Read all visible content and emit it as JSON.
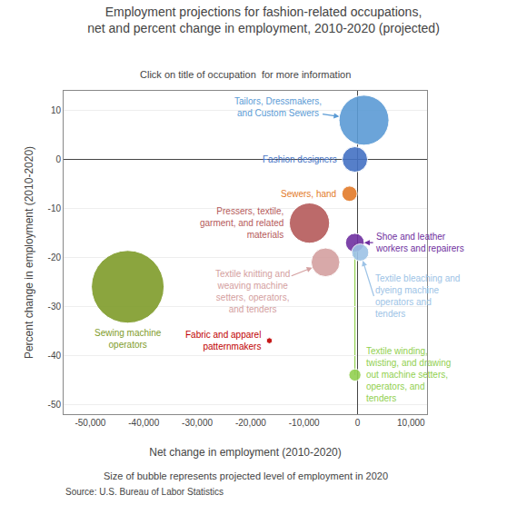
{
  "chart_data": {
    "type": "scatter",
    "title": "Employment projections for fashion-related occupations,\nnet and percent change in employment, 2010-2020 (projected)",
    "subtitle": "Click on title of occupation  for more information",
    "xlabel": "Net change in employment (2010-2020)",
    "ylabel": "Percent change in employment (2010-2020)",
    "size_note": "Size of bubble represents projected level of employment in 2020",
    "source": "Source: U.S. Bureau of Labor Statistics",
    "xlim": [
      -55000,
      13000
    ],
    "ylim": [
      -52,
      14
    ],
    "xticks": [
      {
        "value": -50000,
        "label": "-50,000"
      },
      {
        "value": -40000,
        "label": "-40,000"
      },
      {
        "value": -30000,
        "label": "-30,000"
      },
      {
        "value": -20000,
        "label": "-20,000"
      },
      {
        "value": -10000,
        "label": "-10,000"
      },
      0,
      {
        "value": 10000,
        "label": "10,000"
      }
    ],
    "yticks": [
      10,
      0,
      -10,
      -20,
      -30,
      -40,
      -50
    ],
    "grid": "y",
    "series": [
      {
        "name": "Sewing machine\noperators",
        "color": "#7f9c2a",
        "x": [
          -43000
        ],
        "values": [
          -26
        ],
        "sizes": [
          180000
        ]
      },
      {
        "name": "Tailors, Dressmakers,\nand Custom Sewers",
        "color": "#5b9bd5",
        "x": [
          1200
        ],
        "values": [
          8
        ],
        "sizes": [
          85000
        ]
      },
      {
        "name": "Fashion designers",
        "color": "#4472c4",
        "x": [
          -500
        ],
        "values": [
          0
        ],
        "sizes": [
          22000
        ]
      },
      {
        "name": "Pressers, textile,\ngarment, and related\nmaterials",
        "color": "#b55a5a",
        "x": [
          -9000
        ],
        "values": [
          -13
        ],
        "sizes": [
          55000
        ]
      },
      {
        "name": "Sewers, hand",
        "color": "#e37b2a",
        "x": [
          -1500
        ],
        "values": [
          -7
        ],
        "sizes": [
          8000
        ]
      },
      {
        "name": "Textile knitting and\nweaving machine\nsetters, operators,\nand tenders",
        "color": "#d4a0a0",
        "x": [
          -6000
        ],
        "values": [
          -21
        ],
        "sizes": [
          28000
        ]
      },
      {
        "name": "Shoe and leather\nworkers and repairers",
        "color": "#7030a0",
        "x": [
          -500
        ],
        "values": [
          -17
        ],
        "sizes": [
          12000
        ]
      },
      {
        "name": "Textile bleaching and\ndyeing machine\noperators and\ntenders",
        "color": "#9dc3e6",
        "x": [
          500
        ],
        "values": [
          -19
        ],
        "sizes": [
          10000
        ]
      },
      {
        "name": "Fabric and apparel\npatternmakers",
        "color": "#c00000",
        "x": [
          -16500
        ],
        "values": [
          -37
        ],
        "sizes": [
          1200
        ]
      },
      {
        "name": "Textile winding,\ntwisting, and drawing\nout machine setters,\noperators, and\ntenders",
        "color": "#92d050",
        "x": [
          -500
        ],
        "values": [
          -44
        ],
        "sizes": [
          5000
        ]
      }
    ]
  }
}
